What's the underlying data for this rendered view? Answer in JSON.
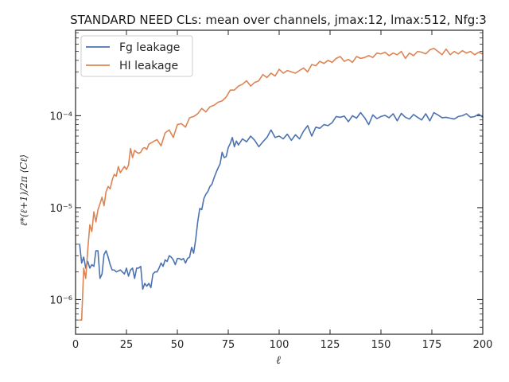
{
  "chart_data": {
    "type": "line",
    "title": "STANDARD NEED CLs: mean over channels, jmax:12, lmax:512, Nfg:3",
    "xlabel": "ℓ",
    "ylabel": "ℓ*(ℓ+1)/2π ⟨Cℓ⟩",
    "xlim": [
      0,
      200
    ],
    "ylim": [
      4.2e-07,
      0.00085
    ],
    "yscale": "log",
    "legend_position": "upper-left",
    "x_ticks": [
      0,
      25,
      50,
      75,
      100,
      125,
      150,
      175,
      200
    ],
    "x_tick_labels": [
      "0",
      "25",
      "50",
      "75",
      "100",
      "125",
      "150",
      "175",
      "200"
    ],
    "y_ticks": [
      1e-06,
      1e-05,
      0.0001
    ],
    "y_tick_labels": [
      "10⁻⁶",
      "10⁻⁵",
      "10⁻⁴"
    ],
    "series": [
      {
        "name": "Fg leakage",
        "color": "#4c72b0",
        "x": [
          2,
          3,
          4,
          5,
          6,
          7,
          8,
          9,
          10,
          11,
          12,
          13,
          14,
          15,
          16,
          17,
          18,
          19,
          20,
          22,
          24,
          25,
          26,
          27,
          28,
          29,
          30,
          31,
          32,
          33,
          34,
          35,
          36,
          37,
          38,
          39,
          40,
          41,
          42,
          43,
          44,
          45,
          46,
          47,
          48,
          49,
          50,
          51,
          52,
          53,
          54,
          55,
          56,
          57,
          58,
          59,
          60,
          61,
          62,
          63,
          64,
          65,
          66,
          67,
          68,
          69,
          70,
          71,
          72,
          73,
          74,
          75,
          76,
          77,
          78,
          79,
          80,
          82,
          84,
          86,
          88,
          90,
          92,
          94,
          96,
          98,
          100,
          102,
          104,
          106,
          108,
          110,
          112,
          114,
          116,
          118,
          120,
          122,
          124,
          126,
          128,
          130,
          132,
          134,
          136,
          138,
          140,
          142,
          144,
          146,
          148,
          150,
          152,
          154,
          156,
          158,
          160,
          162,
          164,
          166,
          168,
          170,
          172,
          174,
          176,
          178,
          180,
          182,
          184,
          186,
          188,
          190,
          192,
          194,
          196,
          198,
          200
        ],
        "values": [
          4e-06,
          2.5e-06,
          2.9e-06,
          2.2e-06,
          2.6e-06,
          2.2e-06,
          2.4e-06,
          2.3e-06,
          3.4e-06,
          3.4e-06,
          1.7e-06,
          1.9e-06,
          3.1e-06,
          3.4e-06,
          2.9e-06,
          2.4e-06,
          2.1e-06,
          2.1e-06,
          2e-06,
          2.1e-06,
          1.9e-06,
          2.2e-06,
          1.8e-06,
          2.1e-06,
          2.2e-06,
          1.7e-06,
          2.2e-06,
          2.2e-06,
          2.3e-06,
          1.3e-06,
          1.5e-06,
          1.4e-06,
          1.5e-06,
          1.35e-06,
          1.9e-06,
          2e-06,
          2e-06,
          2.2e-06,
          2.5e-06,
          2.3e-06,
          2.7e-06,
          2.6e-06,
          3e-06,
          2.9e-06,
          2.7e-06,
          2.4e-06,
          2.8e-06,
          2.8e-06,
          2.7e-06,
          2.8e-06,
          2.5e-06,
          2.8e-06,
          2.9e-06,
          3.7e-06,
          3.2e-06,
          4.5e-06,
          7e-06,
          9.8e-06,
          9.5e-06,
          1.25e-05,
          1.4e-05,
          1.5e-05,
          1.7e-05,
          1.8e-05,
          2.1e-05,
          2.4e-05,
          2.7e-05,
          3e-05,
          4e-05,
          3.5e-05,
          3.6e-05,
          4.5e-05,
          5e-05,
          5.8e-05,
          4.6e-05,
          5.3e-05,
          4.8e-05,
          5.6e-05,
          5.2e-05,
          6e-05,
          5.4e-05,
          4.6e-05,
          5.2e-05,
          5.8e-05,
          7e-05,
          5.8e-05,
          6e-05,
          5.6e-05,
          6.3e-05,
          5.4e-05,
          6.2e-05,
          5.6e-05,
          6.8e-05,
          7.8e-05,
          6e-05,
          7.5e-05,
          7.3e-05,
          8e-05,
          7.8e-05,
          8.4e-05,
          9.8e-05,
          9.6e-05,
          9.9e-05,
          8.6e-05,
          0.0001,
          9.4e-05,
          0.000108,
          9.5e-05,
          8e-05,
          0.000102,
          9.3e-05,
          9.8e-05,
          0.000101,
          9.5e-05,
          0.000105,
          8.8e-05,
          0.000106,
          9.6e-05,
          9.2e-05,
          0.000103,
          9.6e-05,
          9e-05,
          0.000105,
          8.8e-05,
          0.000108,
          0.000102,
          9.5e-05,
          9.6e-05,
          9.4e-05,
          9.2e-05,
          9.8e-05,
          0.0001,
          0.000105,
          9.6e-05,
          9.8e-05,
          0.000104,
          9.6e-05
        ]
      },
      {
        "name": "HI leakage",
        "color": "#dd8452",
        "x": [
          2,
          3,
          4,
          5,
          6,
          7,
          8,
          9,
          10,
          11,
          12,
          13,
          14,
          15,
          16,
          17,
          18,
          19,
          20,
          21,
          22,
          23,
          24,
          25,
          26,
          27,
          28,
          29,
          30,
          31,
          32,
          33,
          34,
          35,
          36,
          38,
          40,
          42,
          44,
          46,
          48,
          50,
          52,
          54,
          56,
          58,
          60,
          62,
          64,
          66,
          68,
          70,
          72,
          74,
          76,
          78,
          80,
          82,
          84,
          86,
          88,
          90,
          92,
          94,
          96,
          98,
          100,
          102,
          104,
          106,
          108,
          110,
          112,
          114,
          116,
          118,
          120,
          122,
          124,
          126,
          128,
          130,
          132,
          134,
          136,
          138,
          140,
          142,
          144,
          146,
          148,
          150,
          152,
          154,
          156,
          158,
          160,
          162,
          164,
          166,
          168,
          170,
          172,
          174,
          176,
          178,
          180,
          182,
          184,
          186,
          188,
          190,
          192,
          194,
          196,
          198,
          200
        ],
        "values": [
          6e-07,
          6e-07,
          2.2e-06,
          1.7e-06,
          3.5e-06,
          6.5e-06,
          5.5e-06,
          9e-06,
          7e-06,
          9.5e-06,
          1.1e-05,
          1.3e-05,
          1.05e-05,
          1.5e-05,
          1.7e-05,
          1.6e-05,
          2e-05,
          2.3e-05,
          2.2e-05,
          2.8e-05,
          2.4e-05,
          2.6e-05,
          2.8e-05,
          2.6e-05,
          2.9e-05,
          4.4e-05,
          3.5e-05,
          4.2e-05,
          4e-05,
          3.9e-05,
          4e-05,
          4.4e-05,
          4.5e-05,
          4.3e-05,
          4.9e-05,
          5.2e-05,
          5.5e-05,
          4.7e-05,
          6.5e-05,
          7e-05,
          5.8e-05,
          8e-05,
          8.2e-05,
          7.5e-05,
          9.5e-05,
          9.8e-05,
          0.000105,
          0.00012,
          0.00011,
          0.000125,
          0.00013,
          0.00014,
          0.000145,
          0.00016,
          0.00019,
          0.00019,
          0.00021,
          0.00022,
          0.00024,
          0.00021,
          0.00023,
          0.00024,
          0.00028,
          0.00026,
          0.00029,
          0.00027,
          0.00032,
          0.00029,
          0.00031,
          0.0003,
          0.00029,
          0.00031,
          0.00033,
          0.0003,
          0.00036,
          0.00035,
          0.00039,
          0.00037,
          0.0004,
          0.00038,
          0.00042,
          0.00044,
          0.00039,
          0.00041,
          0.00038,
          0.00044,
          0.00042,
          0.00043,
          0.00045,
          0.00043,
          0.00048,
          0.00047,
          0.00049,
          0.00045,
          0.00048,
          0.00046,
          0.0005,
          0.00042,
          0.00048,
          0.00045,
          0.0005,
          0.00049,
          0.00047,
          0.00052,
          0.00054,
          0.0005,
          0.00046,
          0.00053,
          0.00046,
          0.0005,
          0.00047,
          0.00051,
          0.00048,
          0.0005,
          0.00046,
          0.00049,
          0.00047
        ]
      }
    ]
  }
}
